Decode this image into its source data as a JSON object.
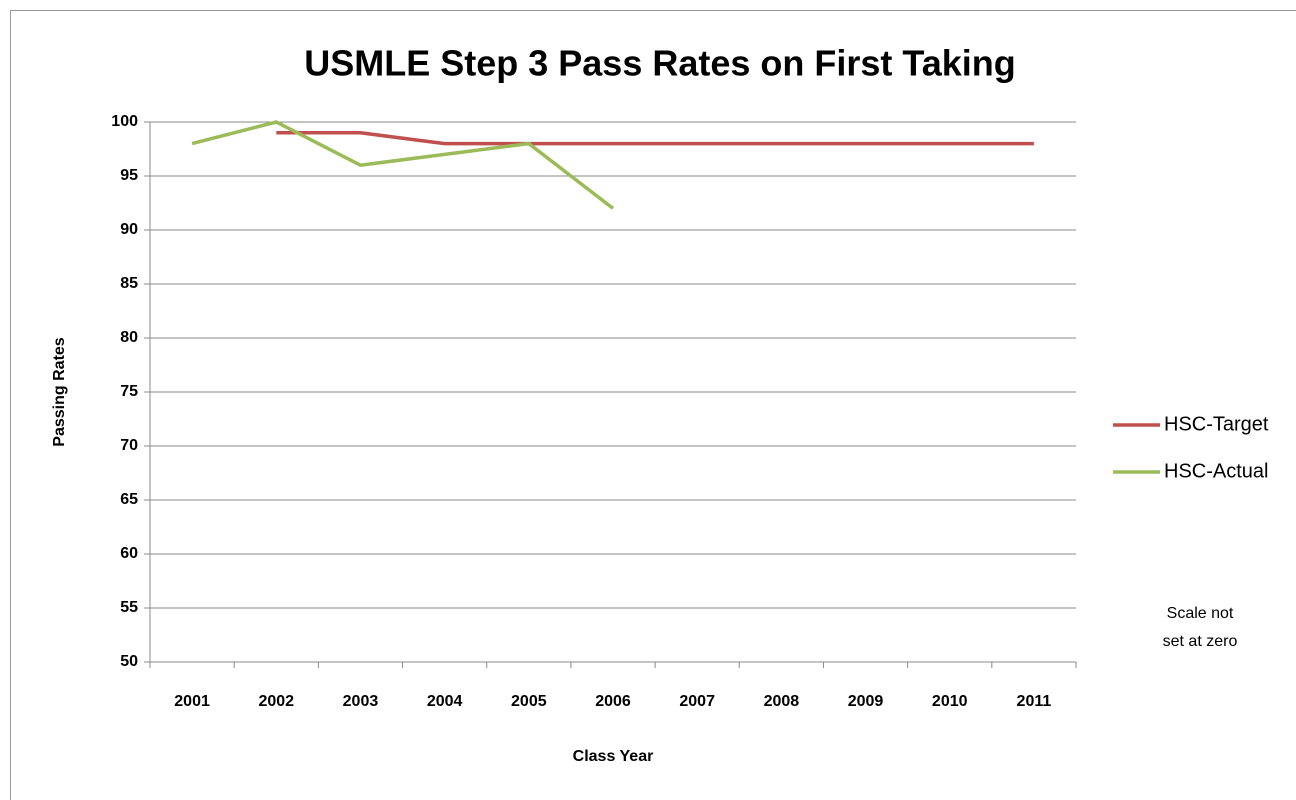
{
  "chart_data": {
    "type": "line",
    "title": "USMLE Step 3 Pass Rates on First  Taking",
    "x_label": "Class Year",
    "y_label": "Passing Rates",
    "annotation": [
      "Scale not",
      "set at zero"
    ],
    "categories": [
      "2001",
      "2002",
      "2003",
      "2004",
      "2005",
      "2006",
      "2007",
      "2008",
      "2009",
      "2010",
      "2011"
    ],
    "series": [
      {
        "name": "HSC-Target",
        "color": "#c0504d",
        "values": [
          null,
          99,
          99,
          98,
          98,
          98,
          98,
          98,
          98,
          98,
          98
        ]
      },
      {
        "name": "HSC-Actual",
        "color": "#9bbb59",
        "values": [
          98,
          100,
          96,
          97,
          98,
          92,
          null,
          null,
          null,
          null,
          null
        ]
      }
    ],
    "ylim": [
      50,
      100
    ],
    "yticks": [
      50,
      55,
      60,
      65,
      70,
      75,
      80,
      85,
      90,
      95,
      100
    ],
    "grid": true,
    "legend": "right"
  }
}
